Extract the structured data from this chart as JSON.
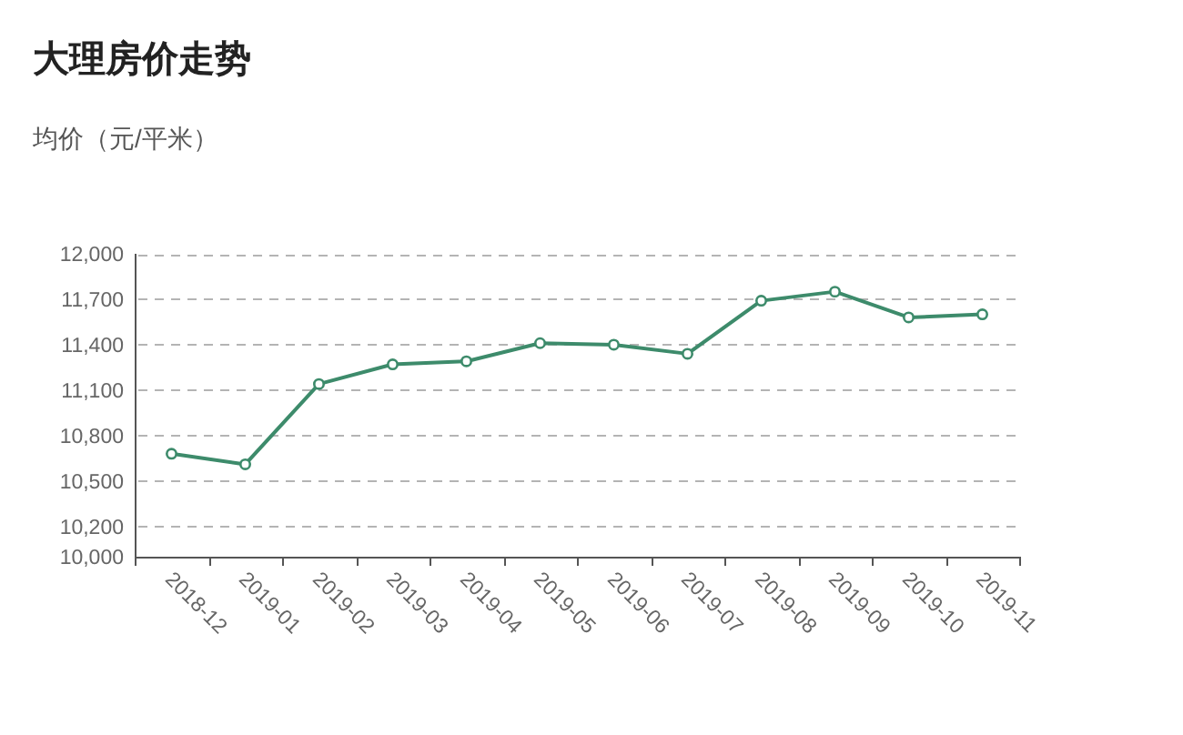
{
  "chart_data": {
    "type": "line",
    "title": "大理房价走势",
    "subtitle": "均价（元/平米）",
    "categories": [
      "2018-12",
      "2019-01",
      "2019-02",
      "2019-03",
      "2019-04",
      "2019-05",
      "2019-06",
      "2019-07",
      "2019-08",
      "2019-09",
      "2019-10",
      "2019-11"
    ],
    "series": [
      {
        "color": "#3d8b6b",
        "values": [
          10680,
          10610,
          11140,
          11270,
          11290,
          11410,
          11400,
          11340,
          11690,
          11750,
          11580,
          11600
        ]
      }
    ],
    "ylim": [
      10000,
      12000
    ],
    "yticks": [
      {
        "value": 10000,
        "label": "10,000"
      },
      {
        "value": 10200,
        "label": "10,200"
      },
      {
        "value": 10500,
        "label": "10,500"
      },
      {
        "value": 10800,
        "label": "10,800"
      },
      {
        "value": 11100,
        "label": "11,100"
      },
      {
        "value": 11400,
        "label": "11,400"
      },
      {
        "value": 11700,
        "label": "11,700"
      },
      {
        "value": 12000,
        "label": "12,000"
      }
    ],
    "grid": "y",
    "marker": "circle",
    "line_style": "solid"
  }
}
